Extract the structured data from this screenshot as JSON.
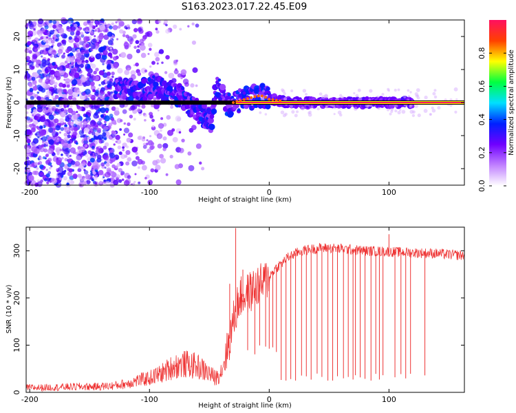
{
  "figure": {
    "title": "S163.2023.017.22.45.E09"
  },
  "chart_data": [
    {
      "type": "heatmap",
      "title": "S163.2023.017.22.45.E09",
      "xlabel": "Height of straight line (km)",
      "ylabel": "Frequency (Hz)",
      "xlim": [
        -203,
        163
      ],
      "ylim": [
        -25,
        25
      ],
      "x_ticks": [
        -200,
        -100,
        0,
        100
      ],
      "y_ticks": [
        -20,
        -10,
        0,
        10,
        20
      ],
      "colorbar": {
        "label": "Normalized spectral amplitude",
        "range": [
          0,
          1
        ],
        "ticks": [
          0.0,
          0.2,
          0.4,
          0.6,
          0.8
        ],
        "colormap": [
          "#ffffff",
          "#c080ff",
          "#7000ff",
          "#0020ff",
          "#00e0ff",
          "#00ff40",
          "#ffff00",
          "#ff4000",
          "#ff1060"
        ]
      },
      "ridge": {
        "name": "",
        "x": [
          -125,
          -110,
          -95,
          -85,
          -75,
          -65,
          -55,
          -48,
          -44,
          -40,
          -35,
          -30,
          -20,
          -10,
          -5,
          0,
          10,
          20,
          50,
          80,
          100,
          120,
          163
        ],
        "y": [
          5,
          3,
          5,
          3.5,
          2,
          -1,
          -4,
          -6,
          5,
          3,
          -1,
          0,
          1,
          2,
          2,
          1,
          0.5,
          0,
          0,
          0,
          0,
          0,
          0
        ]
      },
      "reference_line_y": 0
    },
    {
      "type": "line",
      "title": "",
      "xlabel": "Height of straight line (km)",
      "ylabel": "SNR (10 * v/v)",
      "xlim": [
        -203,
        163
      ],
      "ylim": [
        0,
        350
      ],
      "x_ticks": [
        -200,
        -100,
        0,
        100
      ],
      "y_ticks": [
        0,
        100,
        200,
        300
      ],
      "color": "#ee3333",
      "series": [
        {
          "name": "",
          "x": [
            -203,
            -190,
            -175,
            -160,
            -145,
            -130,
            -120,
            -110,
            -100,
            -90,
            -80,
            -70,
            -60,
            -50,
            -45,
            -40,
            -35,
            -30,
            -25,
            -20,
            -15,
            -10,
            -5,
            0,
            5,
            10,
            15,
            20,
            25,
            30,
            40,
            50,
            60,
            70,
            80,
            90,
            100,
            110,
            120,
            130,
            140,
            150,
            163
          ],
          "values": [
            10,
            10,
            11,
            12,
            12,
            14,
            18,
            25,
            30,
            40,
            55,
            60,
            55,
            40,
            30,
            45,
            90,
            150,
            200,
            205,
            215,
            225,
            232,
            245,
            262,
            272,
            285,
            292,
            298,
            301,
            305,
            306,
            304,
            302,
            300,
            299,
            298,
            297,
            296,
            295,
            294,
            292,
            290
          ]
        }
      ],
      "spikes_up": [
        {
          "x": -28,
          "y": 348
        },
        {
          "x": -33,
          "y": 230
        },
        {
          "x": -22,
          "y": 260
        },
        {
          "x": 100,
          "y": 335
        }
      ],
      "dropout_x": [
        -18,
        -12,
        -8,
        -3,
        0,
        3,
        6,
        10,
        14,
        18,
        22,
        27,
        31,
        35,
        40,
        44,
        49,
        53,
        57,
        62,
        66,
        70,
        72,
        76,
        80,
        85,
        89,
        92,
        95,
        105,
        110,
        114,
        118,
        130
      ]
    }
  ]
}
